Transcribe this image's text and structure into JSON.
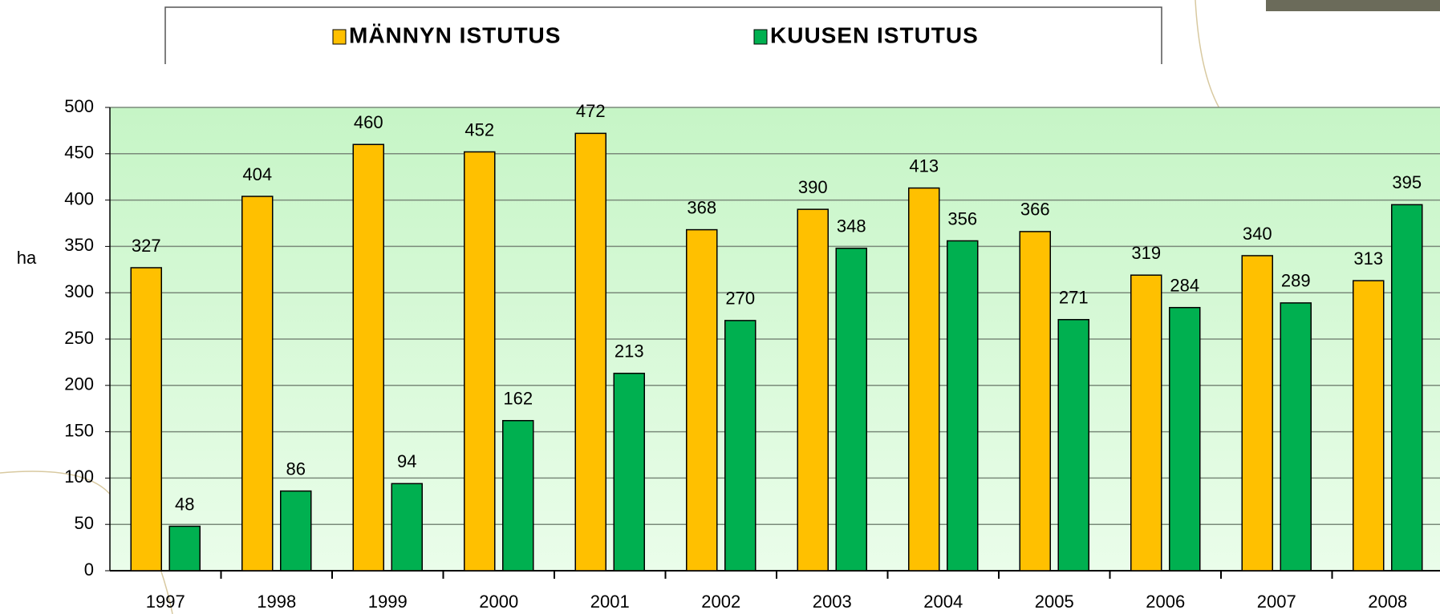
{
  "chart_data": {
    "type": "bar",
    "y_label": "ha",
    "categories": [
      "1997",
      "1998",
      "1999",
      "2000",
      "2001",
      "2002",
      "2003",
      "2004",
      "2005",
      "2006",
      "2007",
      "2008"
    ],
    "series": [
      {
        "name": "MÄNNYN ISTUTUS",
        "color": "#FFC000",
        "values": [
          327,
          404,
          460,
          452,
          472,
          368,
          390,
          413,
          366,
          319,
          340,
          313
        ]
      },
      {
        "name": "KUUSEN ISTUTUS",
        "color": "#00B050",
        "values": [
          48,
          86,
          94,
          162,
          213,
          270,
          348,
          356,
          271,
          284,
          289,
          395
        ]
      }
    ],
    "ylim": [
      0,
      500
    ],
    "yticks": [
      0,
      50,
      100,
      150,
      200,
      250,
      300,
      350,
      400,
      450,
      500
    ],
    "grid": true
  }
}
